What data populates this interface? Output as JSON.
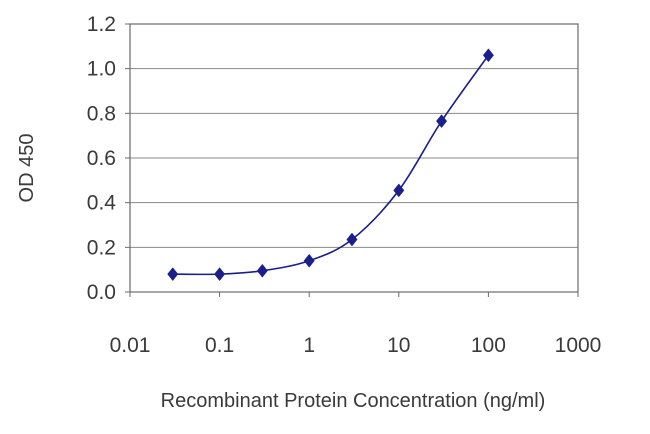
{
  "chart_data": {
    "type": "line",
    "title": "",
    "xlabel": "Recombinant Protein Concentration (ng/ml)",
    "ylabel": "OD 450",
    "x_scale": "log",
    "xlim": [
      0.01,
      1000
    ],
    "ylim": [
      0.0,
      1.2
    ],
    "x_ticks": [
      "0.01",
      "0.1",
      "1",
      "10",
      "100",
      "1000"
    ],
    "y_ticks": [
      "0.0",
      "0.2",
      "0.4",
      "0.6",
      "0.8",
      "1.0",
      "1.2"
    ],
    "grid": "horizontal",
    "legend": "none",
    "series": [
      {
        "color": "#1a1f8c",
        "marker": "diamond",
        "x": [
          0.03,
          0.1,
          0.3,
          1,
          3,
          10,
          30,
          100
        ],
        "y": [
          0.08,
          0.08,
          0.095,
          0.14,
          0.235,
          0.455,
          0.765,
          1.06
        ]
      }
    ]
  }
}
